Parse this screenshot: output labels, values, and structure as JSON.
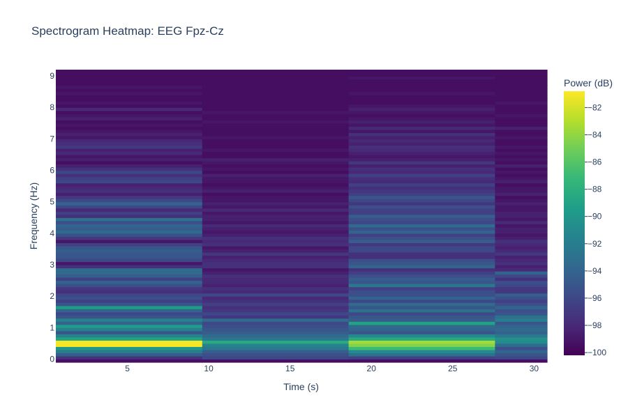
{
  "chart_data": {
    "type": "heatmap",
    "title": "Spectrogram Heatmap: EEG Fpz-Cz",
    "xlabel": "Time (s)",
    "ylabel": "Frequency (Hz)",
    "colorbar_title": "Power (dB)",
    "colorscale": "viridis",
    "xlim": [
      0.6,
      30.8
    ],
    "ylim": [
      -0.1,
      9.2
    ],
    "zlim": [
      -100.2,
      -80.8
    ],
    "x_ticks": [
      5,
      10,
      15,
      20,
      25,
      30
    ],
    "y_ticks": [
      0,
      1,
      2,
      3,
      4,
      5,
      6,
      7,
      8,
      9
    ],
    "z_ticks": [
      -82,
      -84,
      -86,
      -88,
      -90,
      -92,
      -94,
      -96,
      -98,
      -100
    ],
    "x_edges": [
      0.6,
      9.6,
      18.6,
      27.6,
      30.8
    ],
    "y_edges": [
      -0.1,
      0.0,
      0.1,
      0.2,
      0.3,
      0.4,
      0.5,
      0.6,
      0.7,
      0.8,
      0.9,
      1.0,
      1.1,
      1.2,
      1.3,
      1.4,
      1.5,
      1.6,
      1.7,
      1.8,
      1.9,
      2.0,
      2.1,
      2.2,
      2.3,
      2.4,
      2.5,
      2.6,
      2.7,
      2.8,
      2.9,
      3.0,
      3.1,
      3.2,
      3.3,
      3.4,
      3.5,
      3.6,
      3.7,
      3.8,
      3.9,
      4.0,
      4.1,
      4.2,
      4.3,
      4.4,
      4.5,
      4.6,
      4.7,
      4.8,
      4.9,
      5.0,
      5.1,
      5.2,
      5.3,
      5.4,
      5.5,
      5.6,
      5.7,
      5.8,
      5.9,
      6.0,
      6.1,
      6.2,
      6.3,
      6.4,
      6.5,
      6.6,
      6.7,
      6.8,
      6.9,
      7.0,
      7.1,
      7.2,
      7.3,
      7.4,
      7.5,
      7.6,
      7.7,
      7.8,
      7.9,
      8.0,
      8.1,
      8.2,
      8.3,
      8.4,
      8.5,
      8.6,
      8.7,
      8.8,
      8.9,
      9.0,
      9.2
    ],
    "z": [
      [
        -99.5,
        -97.5,
        -94.5,
        -92.0,
        -90.0,
        -81.0,
        -81.0,
        -89.0,
        -91.5,
        -95.0,
        -92.0,
        -89.5,
        -94.0,
        -91.5,
        -95.0,
        -96.0,
        -94.0,
        -89.5,
        -95.0,
        -96.5,
        -95.5,
        -96.0,
        -97.5,
        -97.0,
        -95.5,
        -94.0,
        -96.5,
        -94.5,
        -93.5,
        -93.5,
        -97.5,
        -99.0,
        -96.0,
        -95.0,
        -95.0,
        -94.5,
        -95.0,
        -96.5,
        -99.0,
        -97.0,
        -95.5,
        -93.5,
        -94.5,
        -94.0,
        -95.5,
        -93.0,
        -97.5,
        -96.5,
        -98.0,
        -96.0,
        -94.0,
        -96.0,
        -97.0,
        -98.5,
        -97.5,
        -98.0,
        -98.5,
        -96.0,
        -96.5,
        -97.5,
        -96.0,
        -97.5,
        -98.5,
        -99.5,
        -98.5,
        -99.0,
        -98.0,
        -98.5,
        -97.0,
        -97.5,
        -98.0,
        -99.0,
        -98.5,
        -99.0,
        -99.5,
        -99.0,
        -99.5,
        -98.5,
        -99.0,
        -99.5,
        -98.0,
        -99.5,
        -99.0,
        -99.5,
        -99.5,
        -99.0,
        -99.5,
        -99.0,
        -99.5,
        -99.5,
        -99.5,
        -99.5
      ],
      [
        -99.5,
        -96.0,
        -95.5,
        -94.5,
        -92.5,
        -91.5,
        -88.5,
        -92.5,
        -93.5,
        -94.5,
        -95.0,
        -95.5,
        -96.0,
        -93.5,
        -97.0,
        -96.0,
        -97.0,
        -97.5,
        -96.5,
        -97.5,
        -98.0,
        -96.0,
        -98.0,
        -97.5,
        -98.5,
        -98.0,
        -98.0,
        -97.5,
        -98.5,
        -99.0,
        -97.5,
        -97.5,
        -98.0,
        -98.5,
        -97.0,
        -98.5,
        -99.0,
        -97.5,
        -98.0,
        -97.5,
        -98.5,
        -99.0,
        -98.5,
        -98.0,
        -99.0,
        -98.5,
        -98.5,
        -99.0,
        -98.0,
        -99.0,
        -98.5,
        -99.0,
        -99.0,
        -99.5,
        -98.5,
        -99.0,
        -99.5,
        -99.0,
        -99.0,
        -98.5,
        -99.5,
        -99.0,
        -99.5,
        -99.0,
        -98.5,
        -99.5,
        -99.5,
        -99.0,
        -99.5,
        -99.5,
        -99.5,
        -99.0,
        -99.5,
        -99.5,
        -99.5,
        -99.5,
        -99.0,
        -99.5,
        -99.5,
        -99.0,
        -99.5,
        -99.5,
        -99.5,
        -99.5,
        -99.5,
        -99.5,
        -99.5,
        -99.5,
        -99.5,
        -99.5,
        -99.5,
        -99.5
      ],
      [
        -99.5,
        -96.5,
        -93.0,
        -91.0,
        -87.0,
        -84.5,
        -83.5,
        -88.5,
        -91.0,
        -95.0,
        -94.0,
        -93.5,
        -89.0,
        -94.5,
        -95.0,
        -96.0,
        -93.0,
        -95.0,
        -93.5,
        -96.0,
        -94.0,
        -95.5,
        -95.5,
        -96.5,
        -92.5,
        -95.0,
        -94.5,
        -95.5,
        -96.5,
        -97.5,
        -94.0,
        -95.0,
        -95.5,
        -97.5,
        -97.5,
        -96.0,
        -96.0,
        -97.0,
        -94.5,
        -95.5,
        -96.5,
        -94.0,
        -95.5,
        -93.5,
        -96.0,
        -95.5,
        -94.5,
        -96.5,
        -96.5,
        -95.5,
        -97.0,
        -96.0,
        -95.0,
        -96.5,
        -97.0,
        -97.5,
        -96.5,
        -98.0,
        -97.5,
        -96.5,
        -98.0,
        -97.5,
        -98.5,
        -97.0,
        -98.5,
        -99.0,
        -98.5,
        -98.0,
        -97.5,
        -98.5,
        -98.0,
        -98.5,
        -97.5,
        -99.0,
        -98.0,
        -99.0,
        -98.5,
        -99.0,
        -99.5,
        -99.0,
        -98.5,
        -99.0,
        -99.5,
        -99.5,
        -99.5,
        -99.0,
        -99.5,
        -99.5,
        -99.5,
        -99.5,
        -99.0,
        -99.5
      ],
      [
        -99.5,
        -96.0,
        -95.0,
        -94.0,
        -95.5,
        -93.5,
        -91.0,
        -90.5,
        -92.5,
        -94.0,
        -93.5,
        -94.0,
        -95.0,
        -92.0,
        -93.0,
        -95.0,
        -95.5,
        -94.0,
        -95.5,
        -96.5,
        -95.5,
        -94.5,
        -97.0,
        -97.0,
        -96.0,
        -95.5,
        -97.5,
        -96.0,
        -94.0,
        -98.0,
        -98.5,
        -97.5,
        -98.0,
        -98.5,
        -97.0,
        -98.0,
        -98.5,
        -98.0,
        -97.5,
        -98.5,
        -99.0,
        -98.5,
        -98.5,
        -99.0,
        -98.0,
        -99.0,
        -98.5,
        -98.5,
        -99.0,
        -99.0,
        -98.5,
        -99.0,
        -99.5,
        -98.5,
        -99.0,
        -99.0,
        -99.5,
        -98.5,
        -99.0,
        -99.5,
        -99.0,
        -99.5,
        -98.5,
        -99.5,
        -99.0,
        -99.5,
        -99.0,
        -99.5,
        -99.0,
        -99.5,
        -99.5,
        -99.0,
        -99.5,
        -99.5,
        -98.5,
        -99.5,
        -99.5,
        -99.5,
        -99.0,
        -99.5,
        -99.5,
        -99.5,
        -99.0,
        -99.5,
        -99.5,
        -99.5,
        -99.5,
        -99.5,
        -99.5,
        -99.5,
        -99.5,
        -99.5
      ]
    ]
  }
}
